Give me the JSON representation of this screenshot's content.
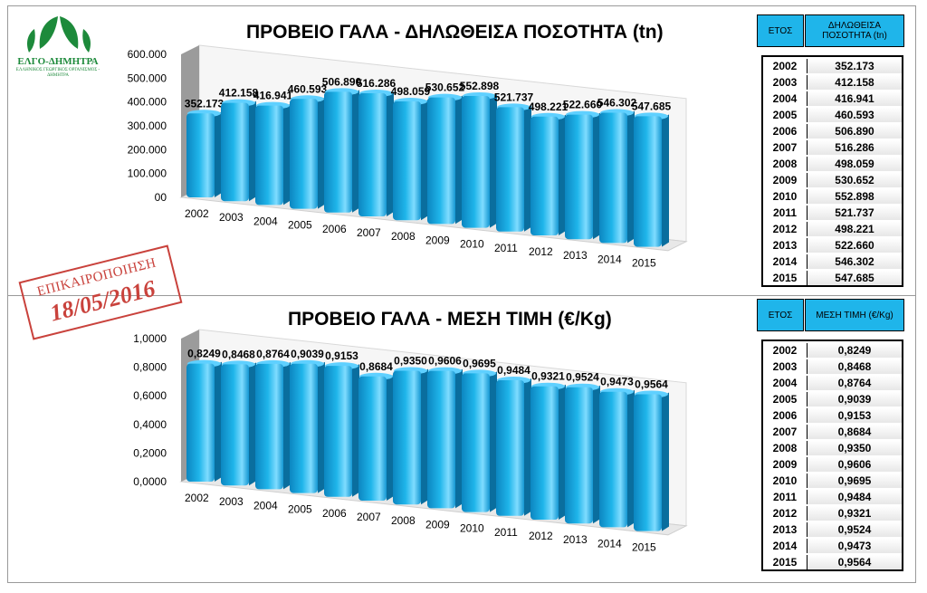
{
  "logo": {
    "name": "ΕΛΓΟ-ΔΗΜΗΤΡΑ",
    "subtitle": "ΕΛΛΗΝΙΚΟΣ ΓΕΩΡΓΙΚΟΣ ΟΡΓΑΝΙΣΜΟΣ - ΔΗΜΗΤΡΑ"
  },
  "stamp": {
    "label": "ΕΠΙΚΑΙΡΟΠΟΙΗΣΗ",
    "date": "18/05/2016"
  },
  "chart_data": [
    {
      "type": "bar",
      "title": "ΠΡΟΒΕΙΟ ΓΑΛΑ - ΔΗΛΩΘΕΙΣΑ ΠΟΣΟΤΗΤΑ (tn)",
      "categories": [
        "2002",
        "2003",
        "2004",
        "2005",
        "2006",
        "2007",
        "2008",
        "2009",
        "2010",
        "2011",
        "2012",
        "2013",
        "2014",
        "2015"
      ],
      "values": [
        352.173,
        412.158,
        416.941,
        460.593,
        506.89,
        516.286,
        498.059,
        530.652,
        552.898,
        521.737,
        498.221,
        522.66,
        546.302,
        547.685
      ],
      "data_labels": [
        "352.173",
        "412.158",
        "416.941",
        "460.593",
        "506.890",
        "516.286",
        "498.059",
        "530.652",
        "552.898",
        "521.737",
        "498.221",
        "522.660",
        "546.302",
        "547.685"
      ],
      "yticks": [
        "00",
        "100.000",
        "200.000",
        "300.000",
        "400.000",
        "500.000",
        "600.000"
      ],
      "ylim": [
        0,
        600
      ],
      "xlabel": "",
      "ylabel": "",
      "bar_color": "#1fb5ea",
      "table": {
        "header_year": "ΕΤΟΣ",
        "header_value": "ΔΗΛΩΘΕΙΣΑ ΠΟΣΟΤΗΤΑ (tn)"
      }
    },
    {
      "type": "bar",
      "title": "ΠΡΟΒΕΙΟ ΓΑΛΑ - ΜΕΣΗ ΤΙΜΗ (€/Kg)",
      "categories": [
        "2002",
        "2003",
        "2004",
        "2005",
        "2006",
        "2007",
        "2008",
        "2009",
        "2010",
        "2011",
        "2012",
        "2013",
        "2014",
        "2015"
      ],
      "values": [
        0.8249,
        0.8468,
        0.8764,
        0.9039,
        0.9153,
        0.8684,
        0.935,
        0.9606,
        0.9695,
        0.9484,
        0.9321,
        0.9524,
        0.9473,
        0.9564
      ],
      "data_labels": [
        "0,8249",
        "0,8468",
        "0,8764",
        "0,9039",
        "0,9153",
        "0,8684",
        "0,9350",
        "0,9606",
        "0,9695",
        "0,9484",
        "0,9321",
        "0,9524",
        "0,9473",
        "0,9564"
      ],
      "yticks": [
        "0,0000",
        "0,2000",
        "0,4000",
        "0,6000",
        "0,8000",
        "1,0000"
      ],
      "ylim": [
        0,
        1.0
      ],
      "xlabel": "",
      "ylabel": "",
      "bar_color": "#1fb5ea",
      "table": {
        "header_year": "ΕΤΟΣ",
        "header_value": "ΜΕΣΗ ΤΙΜΗ (€/Kg)"
      }
    }
  ]
}
